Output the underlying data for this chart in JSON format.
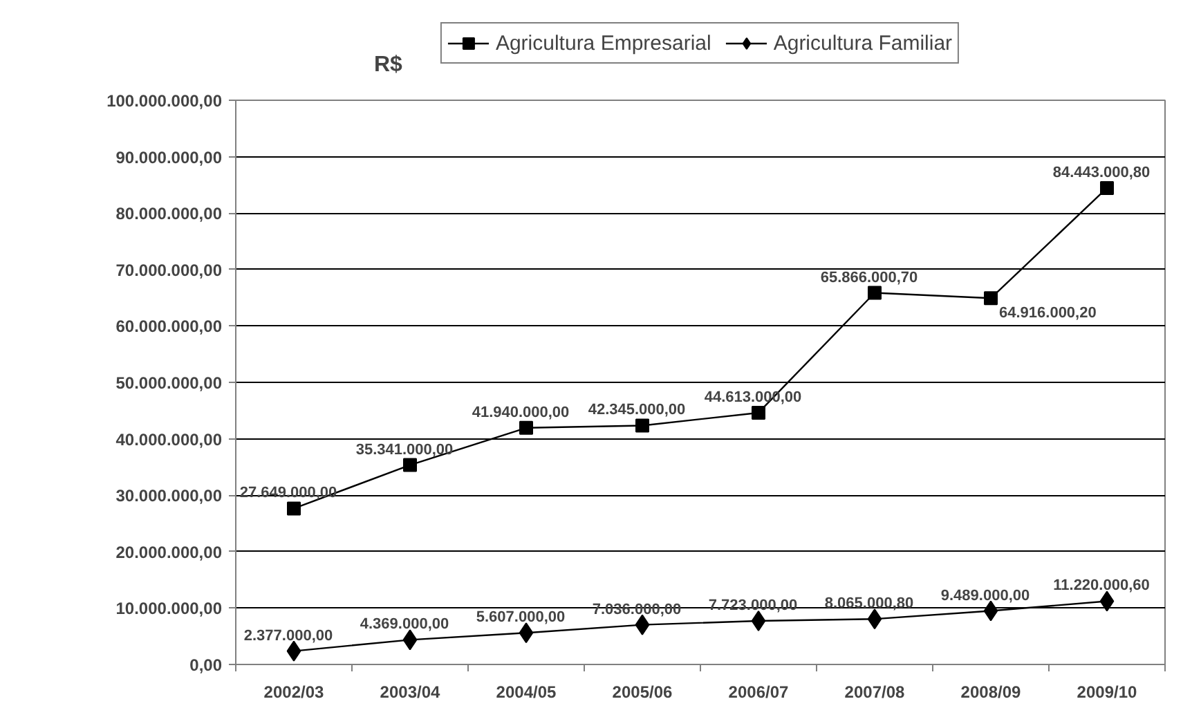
{
  "chart_data": {
    "type": "line",
    "ylabel": "R$",
    "categories": [
      "2002/03",
      "2003/04",
      "2004/05",
      "2005/06",
      "2006/07",
      "2007/08",
      "2008/09",
      "2009/10"
    ],
    "series": [
      {
        "name": "Agricultura Empresarial",
        "color": "#000000",
        "marker": "square",
        "values": [
          27649000.0,
          35341000.0,
          41940000.0,
          42345000.0,
          44613000.0,
          65866000.7,
          64916000.2,
          84443000.8
        ],
        "value_labels": [
          "27.649.000,00",
          "35.341.000,00",
          "41.940.000,00",
          "42.345.000,00",
          "44.613.000,00",
          "65.866.000,70",
          "64.916.000,20",
          "84.443.000,80"
        ]
      },
      {
        "name": "Agricultura Familiar",
        "color": "#000000",
        "marker": "diamond",
        "values": [
          2377000.0,
          4369000.0,
          5607000.0,
          7036000.0,
          7723000.0,
          8065000.8,
          9489000.0,
          11220000.6
        ],
        "value_labels": [
          "2.377.000,00",
          "4.369.000,00",
          "5.607.000,00",
          "7.036.000,00",
          "7.723.000,00",
          "8.065.000,80",
          "9.489.000,00",
          "11.220.000,60"
        ]
      }
    ],
    "ylim": [
      0,
      100000000
    ],
    "yticks": [
      {
        "value": 0,
        "label": "0,00"
      },
      {
        "value": 10000000,
        "label": "10.000.000,00"
      },
      {
        "value": 20000000,
        "label": "20.000.000,00"
      },
      {
        "value": 30000000,
        "label": "30.000.000,00"
      },
      {
        "value": 40000000,
        "label": "40.000.000,00"
      },
      {
        "value": 50000000,
        "label": "50.000.000,00"
      },
      {
        "value": 60000000,
        "label": "60.000.000,00"
      },
      {
        "value": 70000000,
        "label": "70.000.000,00"
      },
      {
        "value": 80000000,
        "label": "80.000.000,00"
      },
      {
        "value": 90000000,
        "label": "90.000.000,00"
      },
      {
        "value": 100000000,
        "label": "100.000.000,00"
      }
    ],
    "grid": "y",
    "legend": "top",
    "line_style": "solid"
  }
}
